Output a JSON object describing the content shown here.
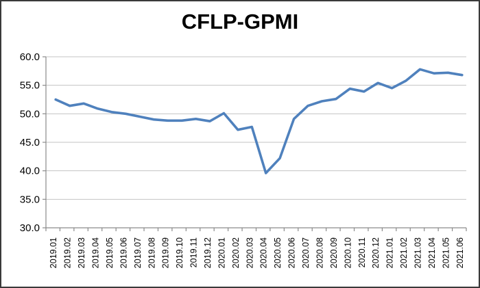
{
  "window": {
    "background": "#ffffff",
    "border_color": "#3a3a3a"
  },
  "chart_data": {
    "type": "line",
    "title": "CFLP-GPMI",
    "xlabel": "",
    "ylabel": "",
    "legend": "none",
    "grid": "horizontal",
    "ylim": [
      30.0,
      60.0
    ],
    "ytick_step": 5.0,
    "ytick_labels": [
      "60.0",
      "55.0",
      "50.0",
      "45.0",
      "40.0",
      "35.0",
      "30.0"
    ],
    "categories": [
      "2019.01",
      "2019.02",
      "2019.03",
      "2019.04",
      "2019.05",
      "2019.06",
      "2019.07",
      "2019.08",
      "2019.09",
      "2019.10",
      "2019.11",
      "2019.12",
      "2020.01",
      "2020.02",
      "2020.03",
      "2020.04",
      "2020.05",
      "2020.06",
      "2020.07",
      "2020.08",
      "2020.09",
      "2020.10",
      "2020.11",
      "2020.12",
      "2021.01",
      "2021.02",
      "2021.03",
      "2021.04",
      "2021.05",
      "2021.06"
    ],
    "series": [
      {
        "name": "CFLP-GPMI",
        "color": "#4F81BD",
        "values": [
          52.5,
          51.4,
          51.8,
          50.9,
          50.3,
          50.0,
          49.5,
          49.0,
          48.8,
          48.8,
          49.1,
          48.7,
          50.1,
          47.2,
          47.7,
          39.6,
          42.2,
          49.1,
          51.4,
          52.2,
          52.6,
          54.4,
          53.9,
          55.4,
          54.5,
          55.8,
          57.8,
          57.1,
          57.2,
          56.8
        ]
      }
    ],
    "colors": {
      "line": "#4F81BD",
      "gridline": "#c3c3c3",
      "axis": "#8a8a8a",
      "text": "#000000"
    }
  }
}
